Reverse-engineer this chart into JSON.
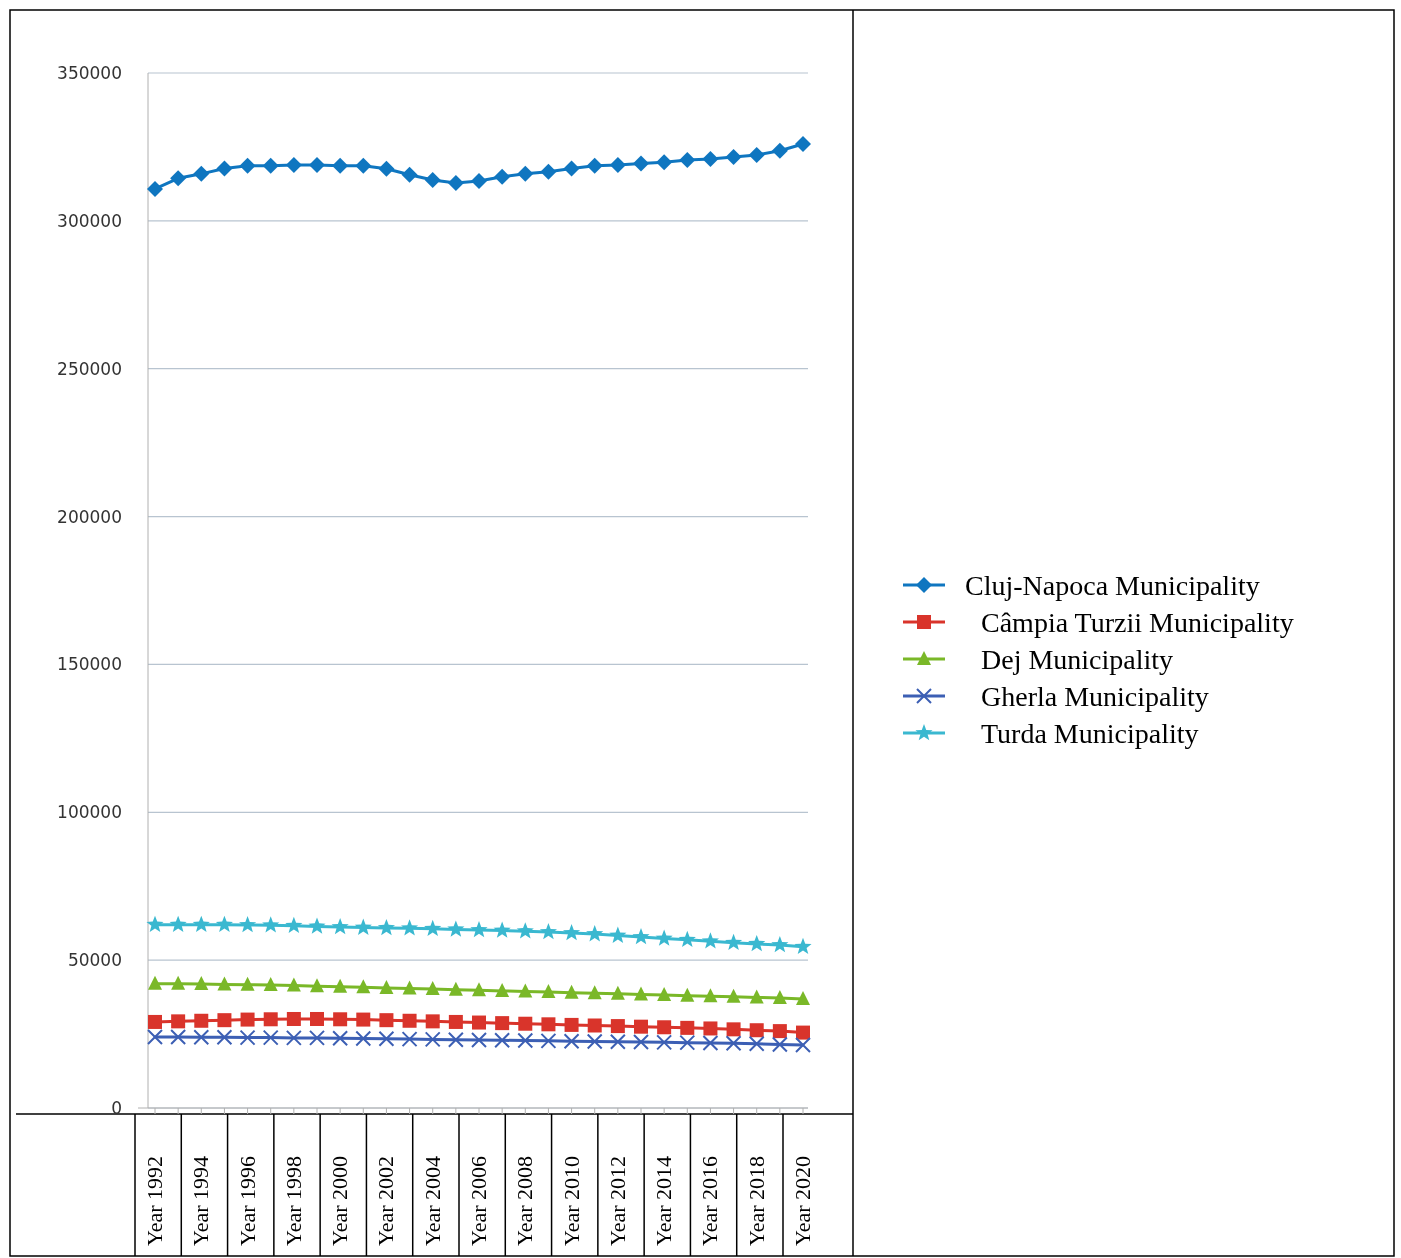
{
  "chart_data": {
    "type": "line",
    "categories": [
      "Year 1992",
      null,
      "Year 1994",
      null,
      "Year 1996",
      null,
      "Year 1998",
      null,
      "Year 2000",
      null,
      "Year 2002",
      null,
      "Year 2004",
      null,
      "Year 2006",
      null,
      "Year 2008",
      null,
      "Year 2010",
      null,
      "Year 2012",
      null,
      "Year 2014",
      null,
      "Year 2016",
      null,
      "Year 2018",
      null,
      "Year 2020"
    ],
    "series": [
      {
        "name": "Cluj-Napoca Municipality",
        "color": "#0f76c0",
        "marker": "diamond",
        "values": [
          310800,
          314400,
          315900,
          317700,
          318600,
          318600,
          318900,
          318900,
          318600,
          318600,
          317600,
          315600,
          313800,
          312800,
          313500,
          314900,
          315900,
          316600,
          317700,
          318600,
          318900,
          319400,
          319800,
          320600,
          320900,
          321600,
          322300,
          323700,
          326000
        ]
      },
      {
        "name": "Câmpia Turzii Municipality",
        "color": "#d9342b",
        "marker": "square",
        "values": [
          29100,
          29300,
          29500,
          29700,
          29900,
          30000,
          30100,
          30100,
          30000,
          29900,
          29700,
          29500,
          29300,
          29100,
          28900,
          28700,
          28500,
          28300,
          28100,
          27900,
          27700,
          27500,
          27300,
          27100,
          26900,
          26600,
          26300,
          26000,
          25500
        ]
      },
      {
        "name": "Dej Municipality",
        "color": "#7ab828",
        "marker": "triangle",
        "values": [
          42000,
          42000,
          41900,
          41800,
          41700,
          41600,
          41400,
          41200,
          41000,
          40800,
          40600,
          40400,
          40200,
          40000,
          39800,
          39600,
          39400,
          39200,
          39000,
          38800,
          38600,
          38400,
          38200,
          38000,
          37800,
          37600,
          37400,
          37200,
          36900
        ]
      },
      {
        "name": "Gherla Municipality",
        "color": "#3c5fb4",
        "marker": "cross",
        "values": [
          24000,
          24000,
          23900,
          23900,
          23800,
          23800,
          23700,
          23700,
          23600,
          23500,
          23400,
          23300,
          23200,
          23100,
          23000,
          22900,
          22800,
          22700,
          22600,
          22500,
          22400,
          22300,
          22200,
          22100,
          22000,
          21900,
          21700,
          21500,
          21300
        ]
      },
      {
        "name": "Turda Municipality",
        "color": "#3ab8d0",
        "marker": "star",
        "values": [
          62000,
          62000,
          62000,
          62000,
          61900,
          61800,
          61600,
          61400,
          61200,
          61000,
          60900,
          60800,
          60600,
          60400,
          60200,
          60000,
          59800,
          59500,
          59200,
          58800,
          58300,
          57800,
          57300,
          56900,
          56400,
          55900,
          55500,
          55100,
          54500
        ]
      }
    ],
    "ylim": [
      0,
      350000
    ],
    "yticks": [
      0,
      50000,
      100000,
      150000,
      200000,
      250000,
      300000,
      350000
    ],
    "grid": "y",
    "legend": "right"
  }
}
